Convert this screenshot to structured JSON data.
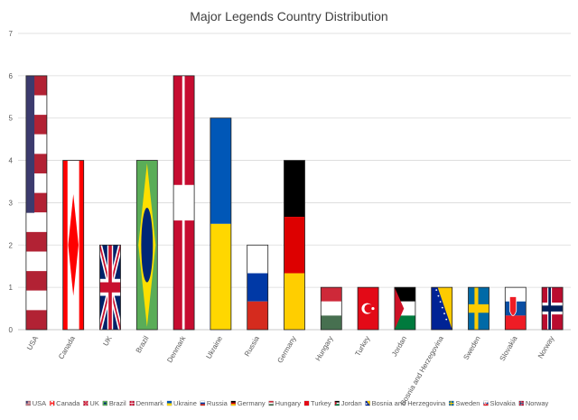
{
  "chart_data": {
    "type": "bar",
    "title": "Major Legends Country Distribution",
    "xlabel": "",
    "ylabel": "",
    "ylim": [
      0,
      7
    ],
    "yticks": [
      0,
      1,
      2,
      3,
      4,
      5,
      6,
      7
    ],
    "grid": true,
    "legend_position": "bottom",
    "categories": [
      "USA",
      "Canada",
      "UK",
      "Brazil",
      "Denmark",
      "Ukraine",
      "Russia",
      "Germany",
      "Hungary",
      "Turkey",
      "Jordan",
      "Bosnia and Herzegovina",
      "Sweden",
      "Slovakia",
      "Norway"
    ],
    "values": [
      6,
      4,
      2,
      4,
      6,
      5,
      2,
      4,
      1,
      1,
      1,
      1,
      1,
      1,
      1
    ],
    "legend": [
      "USA",
      "Canada",
      "UK",
      "Brazil",
      "Denmark",
      "Ukraine",
      "Russia",
      "Germany",
      "Hungary",
      "Turkey",
      "Jordan",
      "Bosnia and Herzegovina",
      "Sweden",
      "Slovakia",
      "Norway"
    ]
  }
}
